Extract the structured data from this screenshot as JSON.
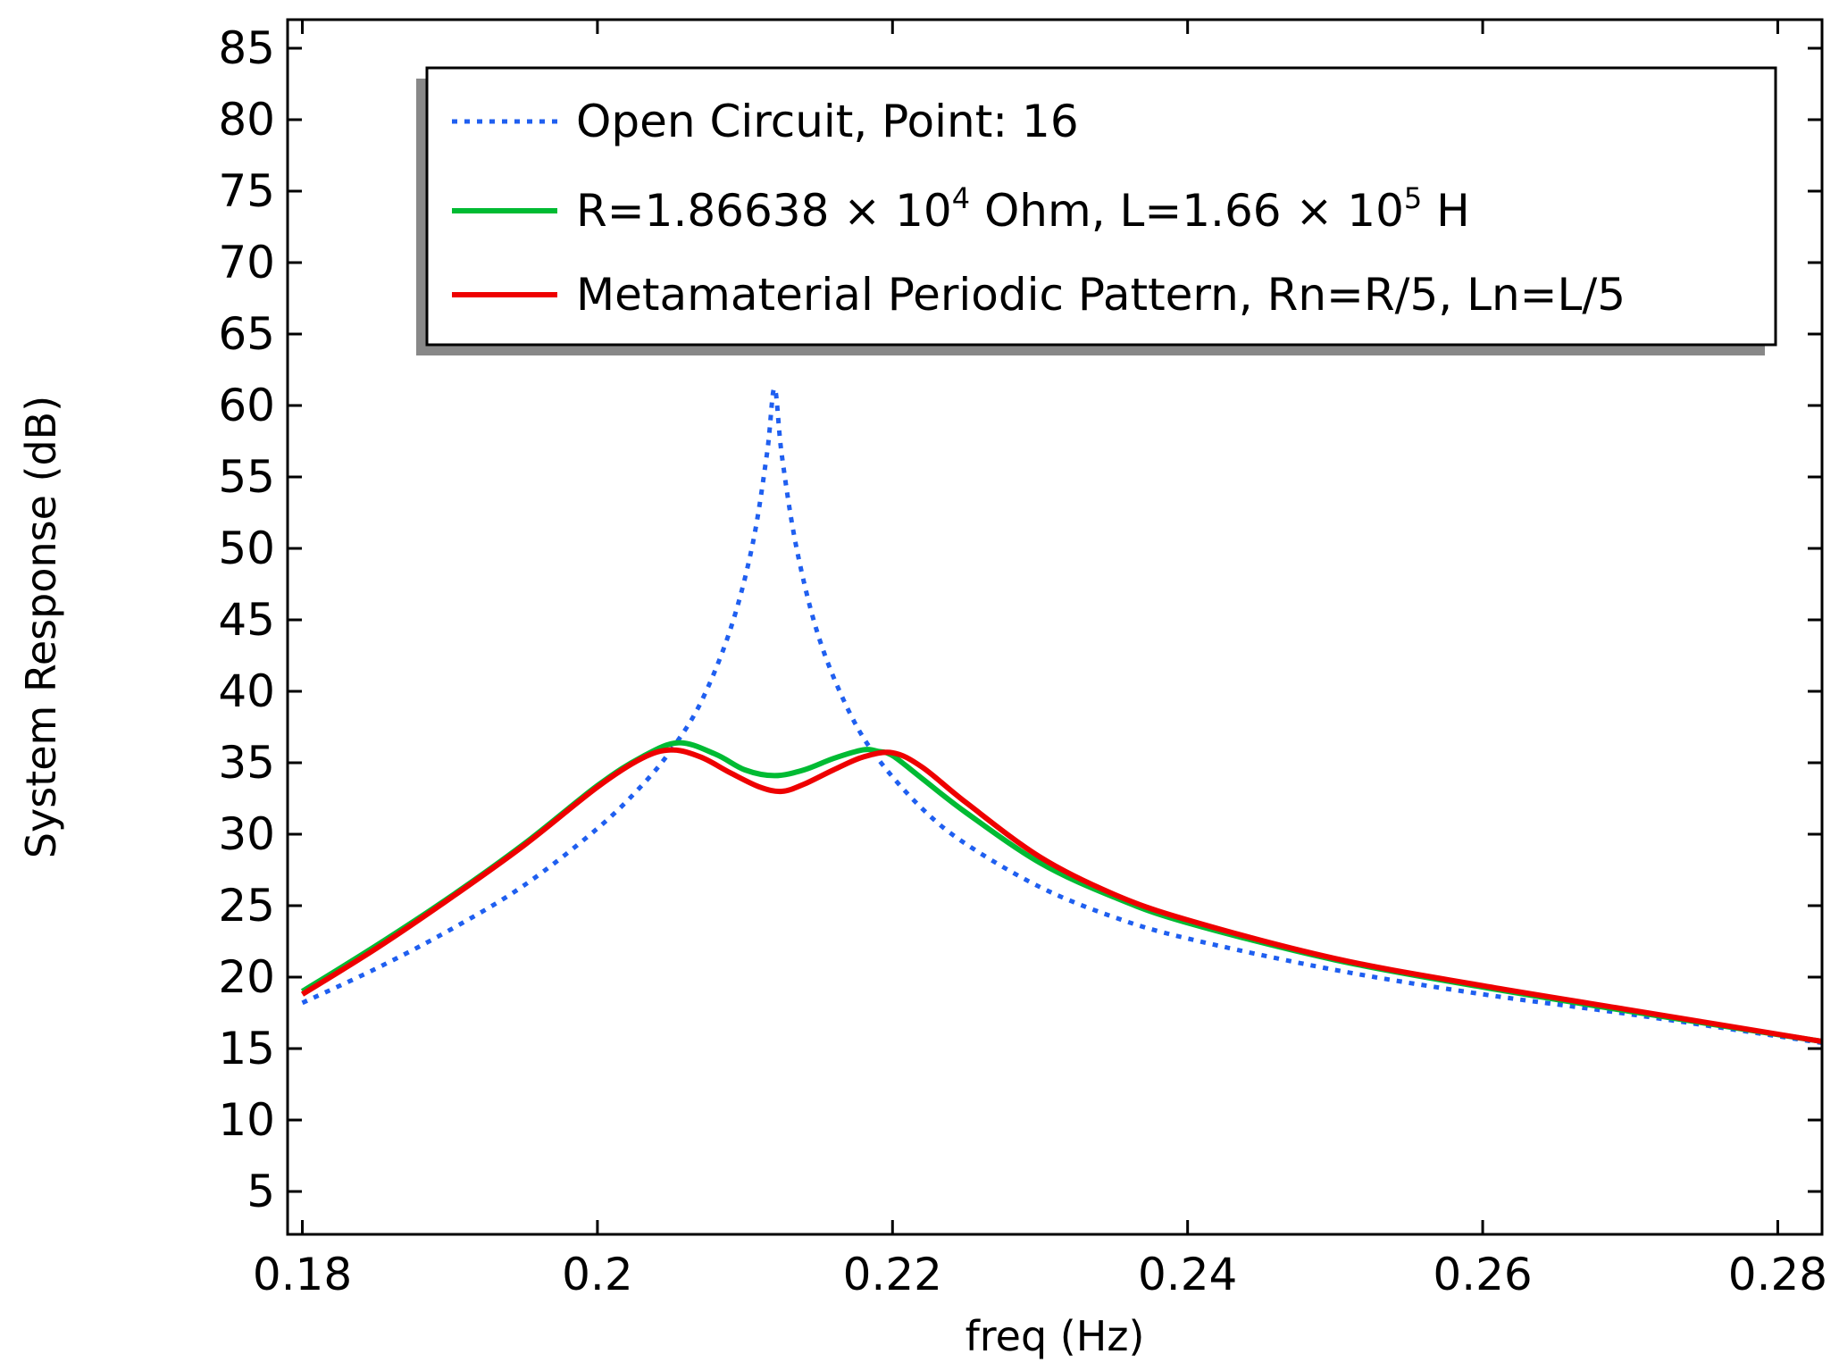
{
  "chart_data": {
    "type": "line",
    "title": "",
    "xlabel": "freq (Hz)",
    "ylabel": "System Response (dB)",
    "xlim": [
      0.179,
      0.283
    ],
    "ylim": [
      2,
      87
    ],
    "grid": false,
    "x_ticks": [
      0.18,
      0.2,
      0.22,
      0.24,
      0.26,
      0.28
    ],
    "x_tick_labels": [
      "0.18",
      "0.2",
      "0.22",
      "0.24",
      "0.26",
      "0.28"
    ],
    "y_ticks": [
      5,
      10,
      15,
      20,
      25,
      30,
      35,
      40,
      45,
      50,
      55,
      60,
      65,
      70,
      75,
      80,
      85
    ],
    "y_tick_labels": [
      "5",
      "10",
      "15",
      "20",
      "25",
      "30",
      "35",
      "40",
      "45",
      "50",
      "55",
      "60",
      "65",
      "70",
      "75",
      "80",
      "85"
    ],
    "legend_position": "top-right",
    "series": [
      {
        "name": "Open Circuit, Point: 16",
        "color": "#1f5ff0",
        "style": "dotted",
        "x": [
          0.18,
          0.185,
          0.19,
          0.195,
          0.2,
          0.203,
          0.205,
          0.207,
          0.209,
          0.2105,
          0.2115,
          0.212,
          0.2125,
          0.2135,
          0.215,
          0.217,
          0.219,
          0.222,
          0.225,
          0.23,
          0.235,
          0.24,
          0.25,
          0.26,
          0.27,
          0.283
        ],
        "values": [
          18.2,
          20.6,
          23.3,
          26.4,
          30.4,
          33.4,
          35.9,
          39.2,
          44.3,
          50.2,
          56.7,
          61.2,
          56.5,
          50.0,
          43.8,
          38.7,
          35.3,
          31.8,
          29.3,
          26.3,
          24.2,
          22.7,
          20.5,
          18.8,
          17.4,
          15.4
        ]
      },
      {
        "name": "R=1.86638 × 10⁴ Ohm, L=1.66 × 10⁵ H",
        "color": "#00bb33",
        "style": "solid",
        "x": [
          0.18,
          0.185,
          0.19,
          0.195,
          0.2,
          0.203,
          0.2055,
          0.208,
          0.21,
          0.212,
          0.214,
          0.216,
          0.218,
          0.219,
          0.22,
          0.222,
          0.225,
          0.23,
          0.235,
          0.24,
          0.25,
          0.26,
          0.27,
          0.283
        ],
        "values": [
          19.0,
          22.2,
          25.6,
          29.3,
          33.4,
          35.4,
          36.4,
          35.6,
          34.5,
          34.1,
          34.5,
          35.3,
          35.9,
          35.8,
          35.5,
          33.9,
          31.5,
          28.0,
          25.6,
          23.8,
          21.2,
          19.3,
          17.6,
          15.5
        ]
      },
      {
        "name": "Metamaterial Periodic Pattern, Rn=R/5, Ln=L/5",
        "color": "#ee0000",
        "style": "solid",
        "x": [
          0.18,
          0.185,
          0.19,
          0.195,
          0.2,
          0.203,
          0.205,
          0.207,
          0.209,
          0.211,
          0.2125,
          0.214,
          0.216,
          0.218,
          0.22,
          0.222,
          0.225,
          0.23,
          0.235,
          0.24,
          0.25,
          0.26,
          0.27,
          0.283
        ],
        "values": [
          18.8,
          22.0,
          25.5,
          29.2,
          33.3,
          35.3,
          35.9,
          35.4,
          34.3,
          33.3,
          33.0,
          33.5,
          34.5,
          35.4,
          35.7,
          34.7,
          32.2,
          28.4,
          25.8,
          24.0,
          21.3,
          19.4,
          17.7,
          15.5
        ]
      }
    ],
    "legend": [
      {
        "parts": [
          {
            "text": "Open Circuit, Point: 16",
            "sup": false
          }
        ]
      },
      {
        "parts": [
          {
            "text": "R=1.86638 × 10",
            "sup": false
          },
          {
            "text": "4",
            "sup": true
          },
          {
            "text": " Ohm, L=1.66 × 10",
            "sup": false
          },
          {
            "text": "5",
            "sup": true
          },
          {
            "text": " H",
            "sup": false
          }
        ]
      },
      {
        "parts": [
          {
            "text": "Metamaterial Periodic Pattern, Rn=R/5, Ln=L/5",
            "sup": false
          }
        ]
      }
    ]
  }
}
